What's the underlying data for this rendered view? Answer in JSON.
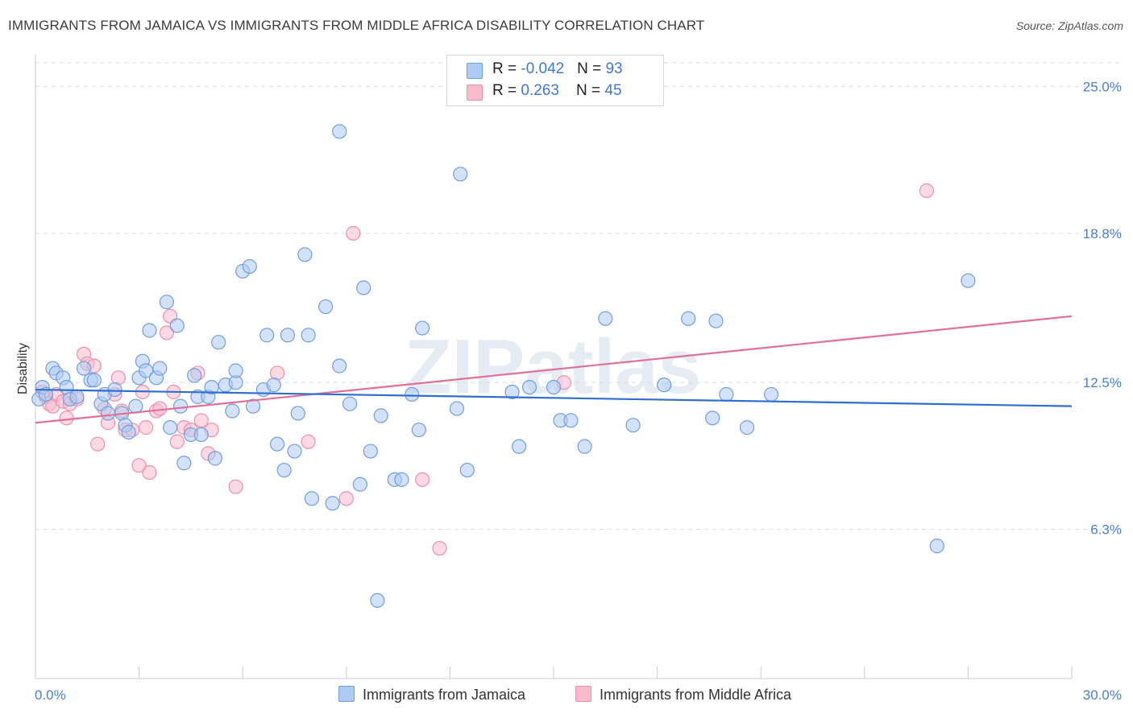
{
  "title": "IMMIGRANTS FROM JAMAICA VS IMMIGRANTS FROM MIDDLE AFRICA DISABILITY CORRELATION CHART",
  "source": "Source: ZipAtlas.com",
  "watermark": "ZIPatlas",
  "colors": {
    "blue_fill": "#aecbf3",
    "blue_stroke": "#6f9fe0",
    "blue_line": "#2f6fd0",
    "pink_fill": "#f8bccd",
    "pink_stroke": "#ee8fac",
    "pink_line": "#e07098",
    "tick_text": "#4a7fd0",
    "grid": "#dddddd"
  },
  "legend_top": {
    "rows": [
      {
        "r_label": "R = ",
        "r_value": "-0.042",
        "n_label": "N = ",
        "n_value": "93"
      },
      {
        "r_label": "R = ",
        "r_value": "0.263",
        "n_label": "N = ",
        "n_value": "45"
      }
    ]
  },
  "legend_bottom": {
    "items": [
      "Immigrants from Jamaica",
      "Immigrants from Middle Africa"
    ]
  },
  "chart_data": {
    "type": "scatter",
    "ylabel": "Disability",
    "xlim": [
      0,
      30
    ],
    "ylim": [
      0,
      26.0
    ],
    "x_tick_labels": [
      {
        "value": 0,
        "label": "0.0%"
      },
      {
        "value": 30,
        "label": "30.0%"
      }
    ],
    "y_ticks": [
      {
        "value": 6.3,
        "label": "6.3%"
      },
      {
        "value": 12.5,
        "label": "12.5%"
      },
      {
        "value": 18.8,
        "label": "18.8%"
      },
      {
        "value": 25.0,
        "label": "25.0%"
      }
    ],
    "grid": true,
    "legend_position": "top-center",
    "series": [
      {
        "name": "Immigrants from Jamaica",
        "r": -0.042,
        "n": 93,
        "trend": {
          "x": [
            0,
            30
          ],
          "y": [
            12.2,
            11.5
          ]
        },
        "points": [
          [
            0.1,
            11.8
          ],
          [
            0.2,
            12.3
          ],
          [
            0.3,
            12.0
          ],
          [
            0.5,
            13.1
          ],
          [
            0.6,
            12.9
          ],
          [
            0.8,
            12.7
          ],
          [
            0.9,
            12.3
          ],
          [
            1.0,
            11.8
          ],
          [
            1.2,
            11.9
          ],
          [
            1.4,
            13.1
          ],
          [
            1.6,
            12.6
          ],
          [
            1.7,
            12.6
          ],
          [
            1.9,
            11.6
          ],
          [
            2.0,
            12.0
          ],
          [
            2.1,
            11.2
          ],
          [
            2.3,
            12.2
          ],
          [
            2.5,
            11.2
          ],
          [
            2.6,
            10.7
          ],
          [
            2.7,
            10.4
          ],
          [
            2.9,
            11.5
          ],
          [
            3.0,
            12.7
          ],
          [
            3.1,
            13.4
          ],
          [
            3.2,
            13.0
          ],
          [
            3.3,
            14.7
          ],
          [
            3.5,
            12.7
          ],
          [
            3.6,
            13.1
          ],
          [
            3.8,
            15.9
          ],
          [
            3.9,
            10.6
          ],
          [
            4.1,
            14.9
          ],
          [
            4.2,
            11.5
          ],
          [
            4.3,
            9.1
          ],
          [
            4.5,
            10.3
          ],
          [
            4.6,
            12.8
          ],
          [
            4.7,
            11.9
          ],
          [
            4.8,
            10.3
          ],
          [
            5.0,
            11.9
          ],
          [
            5.1,
            12.3
          ],
          [
            5.2,
            9.3
          ],
          [
            5.3,
            14.2
          ],
          [
            5.5,
            12.4
          ],
          [
            5.7,
            11.3
          ],
          [
            5.8,
            12.5
          ],
          [
            5.8,
            13.0
          ],
          [
            6.0,
            17.2
          ],
          [
            6.2,
            17.4
          ],
          [
            6.3,
            11.5
          ],
          [
            6.6,
            12.2
          ],
          [
            6.7,
            14.5
          ],
          [
            6.9,
            12.4
          ],
          [
            7.0,
            9.9
          ],
          [
            7.2,
            8.8
          ],
          [
            7.3,
            14.5
          ],
          [
            7.5,
            9.6
          ],
          [
            7.6,
            11.2
          ],
          [
            7.8,
            17.9
          ],
          [
            7.9,
            14.5
          ],
          [
            8.0,
            7.6
          ],
          [
            8.4,
            15.7
          ],
          [
            8.6,
            7.4
          ],
          [
            8.8,
            13.2
          ],
          [
            8.8,
            23.1
          ],
          [
            9.1,
            11.6
          ],
          [
            9.4,
            8.2
          ],
          [
            9.5,
            16.5
          ],
          [
            9.7,
            9.6
          ],
          [
            9.9,
            3.3
          ],
          [
            10.0,
            11.1
          ],
          [
            10.4,
            8.4
          ],
          [
            10.6,
            8.4
          ],
          [
            10.9,
            12.0
          ],
          [
            11.1,
            10.5
          ],
          [
            11.2,
            14.8
          ],
          [
            12.2,
            11.4
          ],
          [
            12.3,
            21.3
          ],
          [
            12.5,
            8.8
          ],
          [
            13.8,
            12.1
          ],
          [
            14.0,
            9.8
          ],
          [
            14.3,
            12.3
          ],
          [
            15.0,
            12.3
          ],
          [
            15.2,
            10.9
          ],
          [
            15.5,
            10.9
          ],
          [
            15.9,
            9.8
          ],
          [
            16.5,
            15.2
          ],
          [
            17.3,
            10.7
          ],
          [
            18.2,
            12.4
          ],
          [
            18.9,
            15.2
          ],
          [
            19.6,
            11.0
          ],
          [
            19.7,
            15.1
          ],
          [
            20.0,
            12.0
          ],
          [
            20.6,
            10.6
          ],
          [
            21.3,
            12.0
          ],
          [
            26.1,
            5.6
          ],
          [
            27.0,
            16.8
          ]
        ]
      },
      {
        "name": "Immigrants from Middle Africa",
        "r": 0.263,
        "n": 45,
        "trend": {
          "x": [
            0,
            30
          ],
          "y": [
            10.8,
            15.3
          ]
        },
        "points": [
          [
            0.2,
            12.1
          ],
          [
            0.3,
            11.9
          ],
          [
            0.4,
            11.6
          ],
          [
            0.5,
            11.5
          ],
          [
            0.6,
            12.0
          ],
          [
            0.8,
            11.7
          ],
          [
            0.9,
            11.0
          ],
          [
            1.0,
            11.6
          ],
          [
            1.2,
            11.8
          ],
          [
            1.4,
            13.7
          ],
          [
            1.5,
            13.3
          ],
          [
            1.7,
            13.2
          ],
          [
            1.8,
            9.9
          ],
          [
            2.0,
            11.4
          ],
          [
            2.1,
            10.8
          ],
          [
            2.3,
            12.0
          ],
          [
            2.4,
            12.7
          ],
          [
            2.5,
            11.3
          ],
          [
            2.6,
            10.5
          ],
          [
            2.8,
            10.5
          ],
          [
            3.0,
            9.0
          ],
          [
            3.1,
            12.1
          ],
          [
            3.2,
            10.6
          ],
          [
            3.3,
            8.7
          ],
          [
            3.5,
            11.3
          ],
          [
            3.6,
            11.4
          ],
          [
            3.8,
            14.6
          ],
          [
            3.9,
            15.3
          ],
          [
            4.0,
            12.1
          ],
          [
            4.1,
            10.0
          ],
          [
            4.3,
            10.6
          ],
          [
            4.5,
            10.5
          ],
          [
            4.7,
            12.9
          ],
          [
            4.8,
            10.9
          ],
          [
            5.0,
            9.5
          ],
          [
            5.1,
            10.5
          ],
          [
            5.8,
            8.1
          ],
          [
            7.0,
            12.9
          ],
          [
            7.9,
            10.0
          ],
          [
            9.0,
            7.6
          ],
          [
            9.2,
            18.8
          ],
          [
            11.2,
            8.4
          ],
          [
            11.7,
            5.5
          ],
          [
            15.3,
            12.5
          ],
          [
            25.8,
            20.6
          ]
        ]
      }
    ]
  }
}
